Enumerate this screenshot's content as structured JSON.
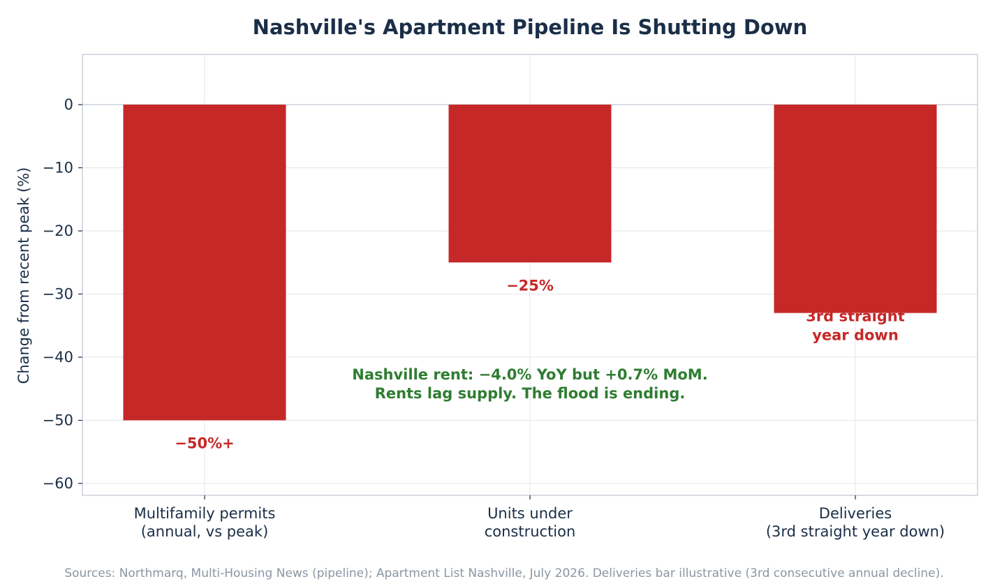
{
  "chart_data": {
    "type": "bar",
    "title": "Nashville's Apartment Pipeline Is Shutting Down",
    "ylabel": "Change from recent peak (%)",
    "xlabel": "",
    "ylim": [
      -62,
      8
    ],
    "yticks": [
      0,
      -10,
      -20,
      -30,
      -40,
      -50,
      -60
    ],
    "ytick_labels": [
      "0",
      "−10",
      "−20",
      "−30",
      "−40",
      "−50",
      "−60"
    ],
    "grid": true,
    "categories": [
      [
        "Multifamily permits",
        "(annual, vs peak)"
      ],
      [
        "Units under",
        "construction"
      ],
      [
        "Deliveries",
        "(3rd straight year down)"
      ]
    ],
    "values": [
      -50,
      -25,
      -33
    ],
    "data_labels": [
      [
        "−50%+"
      ],
      [
        "−25%"
      ],
      [
        "3rd straight",
        "year down"
      ]
    ],
    "annotation": {
      "lines": [
        "Nashville rent: −4.0% YoY but +0.7% MoM.",
        "Rents lag supply. The flood is ending."
      ],
      "x": 1,
      "y": -44
    },
    "source": "Sources: Northmarq, Multi-Housing News (pipeline); Apartment List Nashville, July 2026. Deliveries bar illustrative (3rd consecutive annual decline).",
    "colors": {
      "bar": "#c62828",
      "label": "#c62828",
      "annotation": "#2e7d32",
      "title": "#1a2e47",
      "text": "#1a2e47",
      "source": "#8a96a3",
      "grid": "#e8e9ed",
      "spine": "#ccd0d9"
    }
  }
}
